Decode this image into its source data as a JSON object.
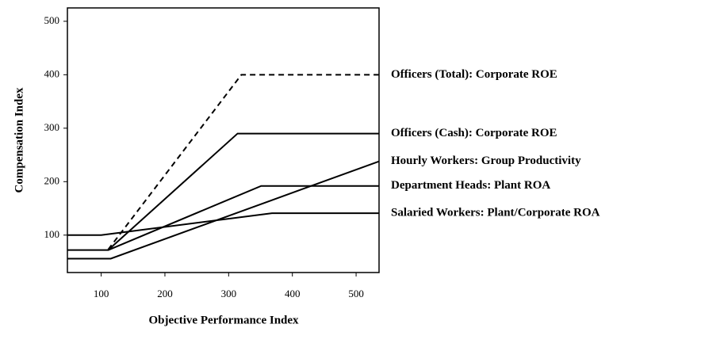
{
  "chart_data": {
    "type": "line",
    "x_label": "Objective Performance Index",
    "y_label": "Compensation Index",
    "xlim": [
      47,
      536
    ],
    "ylim": [
      30,
      525
    ],
    "xticks": [
      100,
      200,
      300,
      400,
      500
    ],
    "yticks": [
      100,
      200,
      300,
      400,
      500
    ],
    "series": [
      {
        "name": "Officers (Total):  Corporate ROE",
        "color": "#000000",
        "dashed": true,
        "x": [
          111,
          320,
          536
        ],
        "values": [
          73,
          400,
          400
        ]
      },
      {
        "name": "Officers (Cash):  Corporate ROE",
        "color": "#000000",
        "dashed": false,
        "x": [
          47,
          111,
          314,
          536
        ],
        "values": [
          72,
          72,
          290,
          290
        ]
      },
      {
        "name": "Hourly Workers:  Group Productivity",
        "color": "#000000",
        "dashed": false,
        "x": [
          47,
          115,
          536
        ],
        "values": [
          56,
          56,
          238
        ]
      },
      {
        "name": "Department Heads:  Plant ROA",
        "color": "#000000",
        "dashed": false,
        "x": [
          111,
          351,
          536
        ],
        "values": [
          72,
          192,
          192
        ]
      },
      {
        "name": "Salaried Workers:  Plant/Corporate ROA",
        "color": "#000000",
        "dashed": false,
        "x": [
          47,
          100,
          368,
          536
        ],
        "values": [
          100,
          100,
          141,
          141
        ]
      }
    ]
  }
}
